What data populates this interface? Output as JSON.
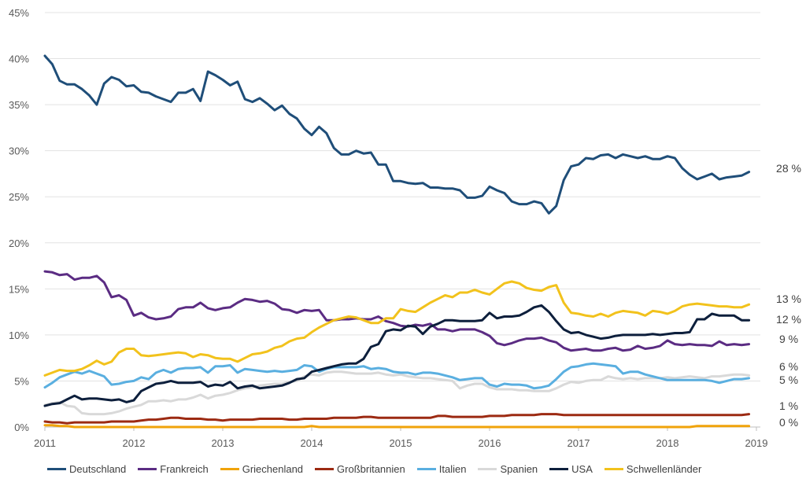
{
  "chart_data": {
    "type": "line",
    "x_start": 2011.0,
    "x_step": 0.0833333,
    "xlim": [
      2011,
      2019
    ],
    "ylim": [
      0,
      45
    ],
    "x_ticks": [
      "2011",
      "2012",
      "2013",
      "2014",
      "2015",
      "2016",
      "2017",
      "2018",
      "2019"
    ],
    "y_ticks": [
      "0%",
      "5%",
      "10%",
      "15%",
      "20%",
      "25%",
      "30%",
      "35%",
      "40%",
      "45%"
    ],
    "grid": "horizontal",
    "legend_position": "bottom",
    "series": [
      {
        "name": "Deutschland",
        "color": "#1f4e79",
        "end_label": "28 %",
        "values": [
          40.3,
          39.4,
          37.6,
          37.2,
          37.2,
          36.7,
          36.0,
          35.0,
          37.3,
          38.0,
          37.7,
          37.0,
          37.1,
          36.4,
          36.3,
          35.9,
          35.6,
          35.3,
          36.3,
          36.3,
          36.7,
          35.4,
          38.6,
          38.2,
          37.7,
          37.1,
          37.5,
          35.6,
          35.3,
          35.7,
          35.1,
          34.4,
          34.9,
          34.0,
          33.5,
          32.4,
          31.7,
          32.6,
          31.9,
          30.3,
          29.6,
          29.6,
          30.0,
          29.7,
          29.8,
          28.5,
          28.5,
          26.7,
          26.7,
          26.5,
          26.4,
          26.5,
          26.0,
          26.0,
          25.9,
          25.9,
          25.7,
          24.9,
          24.9,
          25.1,
          26.1,
          25.7,
          25.4,
          24.5,
          24.2,
          24.2,
          24.5,
          24.3,
          23.2,
          24.0,
          26.8,
          28.3,
          28.5,
          29.2,
          29.1,
          29.5,
          29.6,
          29.2,
          29.6,
          29.4,
          29.2,
          29.4,
          29.1,
          29.1,
          29.4,
          29.2,
          28.1,
          27.4,
          26.9,
          27.2,
          27.5,
          26.9,
          27.1,
          27.2,
          27.3,
          27.7
        ]
      },
      {
        "name": "Frankreich",
        "color": "#5b2c83",
        "end_label": "9 %",
        "values": [
          16.9,
          16.8,
          16.5,
          16.6,
          16.0,
          16.2,
          16.2,
          16.4,
          15.7,
          14.1,
          14.3,
          13.8,
          12.1,
          12.4,
          11.9,
          11.7,
          11.8,
          12.0,
          12.8,
          13.0,
          13.0,
          13.5,
          12.9,
          12.7,
          12.9,
          13.0,
          13.5,
          13.9,
          13.8,
          13.6,
          13.7,
          13.4,
          12.8,
          12.7,
          12.4,
          12.7,
          12.6,
          12.7,
          11.6,
          11.6,
          11.7,
          11.7,
          11.8,
          11.7,
          11.7,
          12.0,
          11.5,
          11.3,
          11.0,
          10.9,
          11.1,
          11.0,
          11.2,
          10.6,
          10.6,
          10.4,
          10.6,
          10.6,
          10.6,
          10.3,
          9.9,
          9.1,
          8.9,
          9.1,
          9.4,
          9.6,
          9.6,
          9.7,
          9.4,
          9.2,
          8.6,
          8.3,
          8.4,
          8.5,
          8.3,
          8.3,
          8.5,
          8.6,
          8.3,
          8.4,
          8.8,
          8.5,
          8.6,
          8.8,
          9.4,
          9.0,
          8.9,
          9.0,
          8.9,
          8.9,
          8.8,
          9.3,
          8.9,
          9.0,
          8.9,
          9.0
        ]
      },
      {
        "name": "Griechenland",
        "color": "#f0a30a",
        "end_label": "0 %",
        "values": [
          0.2,
          0.2,
          0.1,
          0.1,
          0.0,
          0.0,
          0.0,
          0.0,
          0.0,
          0.0,
          0.0,
          0.0,
          0.0,
          0.0,
          0.0,
          0.0,
          0.0,
          0.0,
          0.0,
          0.0,
          0.0,
          0.0,
          0.0,
          0.0,
          0.0,
          0.0,
          0.0,
          0.0,
          0.0,
          0.0,
          0.0,
          0.0,
          0.0,
          0.0,
          0.0,
          0.0,
          0.1,
          0.0,
          0.0,
          0.0,
          0.0,
          0.0,
          0.0,
          0.0,
          0.0,
          0.0,
          0.0,
          0.0,
          0.0,
          0.0,
          0.0,
          0.0,
          0.0,
          0.0,
          0.0,
          0.0,
          0.0,
          0.0,
          0.0,
          0.0,
          0.0,
          0.0,
          0.0,
          0.0,
          0.0,
          0.0,
          0.0,
          0.0,
          0.0,
          0.0,
          0.0,
          0.0,
          0.0,
          0.0,
          0.0,
          0.0,
          0.0,
          0.0,
          0.0,
          0.0,
          0.0,
          0.0,
          0.0,
          0.0,
          0.0,
          0.0,
          0.0,
          0.0,
          0.1,
          0.1,
          0.1,
          0.1,
          0.1,
          0.1,
          0.1,
          0.1
        ]
      },
      {
        "name": "Großbritannien",
        "color": "#9c2a12",
        "end_label": "1 %",
        "values": [
          0.6,
          0.5,
          0.5,
          0.4,
          0.5,
          0.5,
          0.5,
          0.5,
          0.5,
          0.6,
          0.6,
          0.6,
          0.6,
          0.7,
          0.8,
          0.8,
          0.9,
          1.0,
          1.0,
          0.9,
          0.9,
          0.9,
          0.8,
          0.8,
          0.7,
          0.8,
          0.8,
          0.8,
          0.8,
          0.9,
          0.9,
          0.9,
          0.9,
          0.8,
          0.8,
          0.9,
          0.9,
          0.9,
          0.9,
          1.0,
          1.0,
          1.0,
          1.0,
          1.1,
          1.1,
          1.0,
          1.0,
          1.0,
          1.0,
          1.0,
          1.0,
          1.0,
          1.0,
          1.2,
          1.2,
          1.1,
          1.1,
          1.1,
          1.1,
          1.1,
          1.2,
          1.2,
          1.2,
          1.3,
          1.3,
          1.3,
          1.3,
          1.4,
          1.4,
          1.4,
          1.3,
          1.3,
          1.3,
          1.3,
          1.3,
          1.3,
          1.3,
          1.3,
          1.3,
          1.3,
          1.3,
          1.3,
          1.3,
          1.3,
          1.3,
          1.3,
          1.3,
          1.3,
          1.3,
          1.3,
          1.3,
          1.3,
          1.3,
          1.3,
          1.3,
          1.4
        ]
      },
      {
        "name": "Italien",
        "color": "#5aafe0",
        "end_label": "5 %",
        "values": [
          4.3,
          4.8,
          5.4,
          5.7,
          6.0,
          5.8,
          6.1,
          5.8,
          5.5,
          4.6,
          4.7,
          4.9,
          5.0,
          5.4,
          5.2,
          5.9,
          6.2,
          5.9,
          6.3,
          6.4,
          6.4,
          6.5,
          5.9,
          6.6,
          6.6,
          6.7,
          5.9,
          6.3,
          6.2,
          6.1,
          6.0,
          6.1,
          6.0,
          6.1,
          6.2,
          6.7,
          6.6,
          6.0,
          6.3,
          6.5,
          6.5,
          6.5,
          6.5,
          6.6,
          6.3,
          6.4,
          6.3,
          6.0,
          5.9,
          5.9,
          5.7,
          5.9,
          5.9,
          5.8,
          5.6,
          5.4,
          5.1,
          5.2,
          5.3,
          5.3,
          4.6,
          4.4,
          4.7,
          4.6,
          4.6,
          4.5,
          4.2,
          4.3,
          4.5,
          5.2,
          6.0,
          6.5,
          6.6,
          6.8,
          6.9,
          6.8,
          6.7,
          6.6,
          5.8,
          6.0,
          6.0,
          5.7,
          5.5,
          5.3,
          5.1,
          5.1,
          5.1,
          5.1,
          5.1,
          5.1,
          5.0,
          4.8,
          5.0,
          5.2,
          5.2,
          5.3
        ]
      },
      {
        "name": "Spanien",
        "color": "#d9d9d9",
        "end_label": "6 %",
        "values": [
          2.4,
          2.6,
          2.7,
          2.3,
          2.2,
          1.5,
          1.4,
          1.4,
          1.4,
          1.5,
          1.7,
          2.0,
          2.2,
          2.4,
          2.8,
          2.8,
          2.9,
          2.8,
          3.0,
          3.0,
          3.2,
          3.5,
          3.1,
          3.4,
          3.5,
          3.7,
          4.0,
          4.2,
          4.3,
          4.5,
          4.6,
          4.7,
          4.7,
          4.9,
          5.0,
          5.5,
          5.7,
          5.6,
          5.9,
          6.0,
          6.0,
          5.9,
          5.8,
          5.8,
          5.8,
          5.9,
          5.7,
          5.6,
          5.7,
          5.5,
          5.4,
          5.3,
          5.3,
          5.2,
          5.1,
          5.0,
          4.2,
          4.5,
          4.7,
          4.7,
          4.3,
          4.1,
          4.1,
          4.1,
          4.0,
          4.0,
          3.9,
          3.9,
          3.9,
          4.2,
          4.6,
          4.9,
          4.8,
          5.0,
          5.1,
          5.1,
          5.5,
          5.3,
          5.2,
          5.3,
          5.2,
          5.3,
          5.3,
          5.3,
          5.4,
          5.3,
          5.4,
          5.5,
          5.4,
          5.3,
          5.5,
          5.5,
          5.6,
          5.7,
          5.7,
          5.6
        ]
      },
      {
        "name": "USA",
        "color": "#0d1f3c",
        "end_label": "12 %",
        "values": [
          2.3,
          2.5,
          2.6,
          3.0,
          3.4,
          3.0,
          3.1,
          3.1,
          3.0,
          2.9,
          3.0,
          2.7,
          2.9,
          3.9,
          4.3,
          4.7,
          4.8,
          5.0,
          4.8,
          4.8,
          4.8,
          4.9,
          4.4,
          4.6,
          4.5,
          4.9,
          4.2,
          4.4,
          4.5,
          4.2,
          4.3,
          4.4,
          4.5,
          4.8,
          5.2,
          5.3,
          6.0,
          6.2,
          6.4,
          6.6,
          6.8,
          6.9,
          6.9,
          7.4,
          8.7,
          9.0,
          10.4,
          10.6,
          10.5,
          11.0,
          10.9,
          10.1,
          10.9,
          11.2,
          11.6,
          11.6,
          11.5,
          11.5,
          11.5,
          11.6,
          12.4,
          11.8,
          12.0,
          12.0,
          12.1,
          12.5,
          13.0,
          13.2,
          12.5,
          11.5,
          10.6,
          10.2,
          10.3,
          10.0,
          9.8,
          9.6,
          9.7,
          9.9,
          10.0,
          10.0,
          10.0,
          10.0,
          10.1,
          10.0,
          10.1,
          10.2,
          10.2,
          10.3,
          11.7,
          11.7,
          12.3,
          12.1,
          12.1,
          12.1,
          11.6,
          11.6
        ]
      },
      {
        "name": "Schwellenländer",
        "color": "#f2c21c",
        "end_label": "13 %",
        "values": [
          5.6,
          5.9,
          6.2,
          6.1,
          6.1,
          6.3,
          6.7,
          7.2,
          6.8,
          7.1,
          8.1,
          8.5,
          8.5,
          7.8,
          7.7,
          7.8,
          7.9,
          8.0,
          8.1,
          8.0,
          7.6,
          7.9,
          7.8,
          7.5,
          7.4,
          7.4,
          7.1,
          7.5,
          7.9,
          8.0,
          8.2,
          8.6,
          8.8,
          9.3,
          9.6,
          9.7,
          10.3,
          10.8,
          11.2,
          11.6,
          11.8,
          12.0,
          11.9,
          11.6,
          11.3,
          11.3,
          11.8,
          11.8,
          12.8,
          12.6,
          12.5,
          13.0,
          13.5,
          13.9,
          14.3,
          14.1,
          14.6,
          14.6,
          14.9,
          14.6,
          14.4,
          15.0,
          15.6,
          15.8,
          15.6,
          15.1,
          14.9,
          14.8,
          15.2,
          15.4,
          13.5,
          12.4,
          12.3,
          12.1,
          12.0,
          12.3,
          12.0,
          12.4,
          12.6,
          12.5,
          12.4,
          12.1,
          12.6,
          12.5,
          12.3,
          12.6,
          13.1,
          13.3,
          13.4,
          13.3,
          13.2,
          13.1,
          13.1,
          13.0,
          13.0,
          13.3
        ]
      }
    ]
  }
}
